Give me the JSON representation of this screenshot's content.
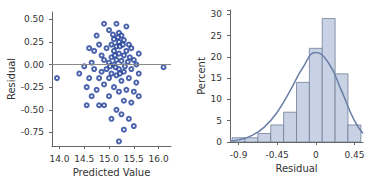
{
  "chart_data": [
    {
      "type": "scatter",
      "x_label": "Predicted Value",
      "y_label": "Residual",
      "color": "#1f3d99",
      "marker": "open_circle",
      "reference_line": 0,
      "x": [
        14.9,
        15.15,
        15.35,
        15.0,
        14.75,
        15.2,
        15.25,
        14.6,
        14.7,
        15.1,
        15.2,
        15.3,
        15.05,
        15.15,
        15.22,
        15.4,
        15.35,
        15.1,
        14.95,
        15.45,
        15.6,
        15.3,
        15.2,
        15.05,
        14.85,
        15.5,
        15.15,
        15.25,
        15.38,
        14.65,
        15.1,
        15.0,
        16.1,
        13.95,
        14.5,
        14.7,
        14.85,
        14.95,
        15.05,
        15.2,
        15.3,
        15.45,
        15.6,
        14.6,
        14.8,
        15.0,
        15.15,
        15.25,
        15.4,
        15.55,
        14.4,
        14.55,
        14.75,
        14.9,
        15.1,
        15.2,
        15.35,
        15.5,
        14.65,
        15.0,
        15.3,
        14.8,
        14.9,
        15.45,
        15.15,
        15.25,
        14.55,
        15.05,
        15.4,
        15.5,
        15.3,
        15.2,
        15.12,
        15.18,
        15.08,
        15.28,
        15.02,
        15.13,
        15.22,
        15.32,
        15.42,
        15.55,
        14.9,
        14.8,
        15.6
      ],
      "values": [
        0.45,
        0.45,
        0.42,
        0.38,
        0.32,
        0.35,
        0.32,
        0.18,
        0.15,
        0.28,
        0.25,
        0.27,
        0.22,
        0.2,
        0.2,
        0.22,
        0.15,
        0.15,
        0.18,
        0.18,
        0.12,
        0.1,
        0.12,
        0.08,
        0.1,
        0.05,
        0.05,
        0.04,
        0.03,
        0.02,
        0.0,
        0.02,
        -0.03,
        -0.15,
        -0.02,
        -0.05,
        -0.08,
        -0.05,
        -0.1,
        -0.05,
        -0.08,
        -0.05,
        -0.1,
        -0.15,
        -0.15,
        -0.15,
        -0.12,
        -0.18,
        -0.15,
        -0.2,
        -0.1,
        -0.25,
        -0.28,
        -0.22,
        -0.25,
        -0.3,
        -0.28,
        -0.3,
        -0.35,
        -0.35,
        -0.4,
        -0.45,
        -0.45,
        -0.42,
        -0.5,
        -0.55,
        -0.45,
        -0.6,
        -0.6,
        -0.68,
        -0.72,
        -0.85,
        0.1,
        0.3,
        0.33,
        0.22,
        -0.02,
        -0.03,
        -0.1,
        -0.02,
        0.08,
        0.0,
        0.05,
        0.22,
        -0.35
      ],
      "xlim": [
        13.85,
        16.25
      ],
      "xticks": [
        {
          "value": 14,
          "label": "14.0"
        },
        {
          "value": 14.5,
          "label": "14.5"
        },
        {
          "value": 15,
          "label": "15.0"
        },
        {
          "value": 15.5,
          "label": "15.5"
        },
        {
          "value": 16,
          "label": "16.0"
        }
      ],
      "ylim": [
        -0.9,
        0.58
      ],
      "yticks": [
        {
          "value": -0.75,
          "label": "-0.75"
        },
        {
          "value": -0.5,
          "label": "-0.50"
        },
        {
          "value": -0.25,
          "label": "-0.25"
        },
        {
          "value": 0,
          "label": "0.00"
        },
        {
          "value": 0.25,
          "label": "0.25"
        },
        {
          "value": 0.5,
          "label": "0.50"
        }
      ],
      "grid": false
    },
    {
      "type": "histogram",
      "x_label": "Residual",
      "y_label": "Percent",
      "bins": [
        -0.975,
        -0.825,
        -0.675,
        -0.525,
        -0.375,
        -0.225,
        -0.075,
        0.075,
        0.225,
        0.375,
        0.525
      ],
      "series": [
        {
          "type": "bar",
          "color": "#c8d2e4",
          "values": [
            1,
            1,
            2,
            4,
            7,
            14,
            22,
            29,
            16,
            4
          ]
        },
        {
          "type": "line",
          "color": "#6a7fa8",
          "line_style": "solid",
          "x": [
            -1.0,
            -0.9,
            -0.75,
            -0.6,
            -0.45,
            -0.3,
            -0.15,
            0,
            0.15,
            0.3,
            0.45,
            0.55
          ],
          "values": [
            0.2,
            0.5,
            1.5,
            3.5,
            7,
            12,
            17.5,
            21,
            18.5,
            12,
            5,
            2
          ]
        }
      ],
      "xlim": [
        -1.0,
        0.55
      ],
      "xticks": [
        -0.9,
        -0.45,
        0,
        0.45
      ],
      "ylim": [
        0,
        31
      ],
      "yticks": [
        0,
        5,
        10,
        15,
        20,
        25,
        30
      ],
      "grid": false
    }
  ]
}
